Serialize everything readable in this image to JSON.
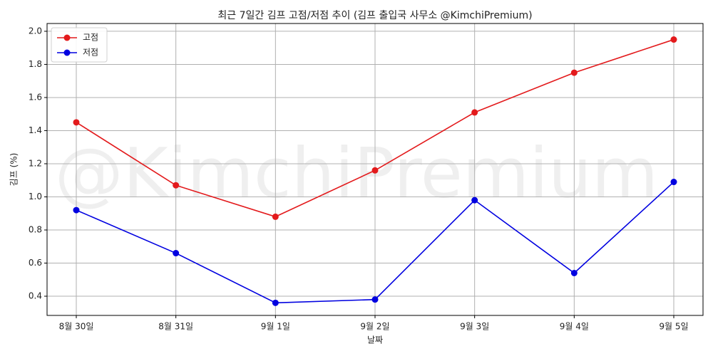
{
  "chart_data": {
    "type": "line",
    "title": "최근 7일간 김프 고점/저점 추이 (김프 출입국 사무소 @KimchiPremium)",
    "watermark": "@KimchiPremium",
    "x_label": "날짜",
    "y_label": "김프 (%)",
    "categories": [
      "8월 30일",
      "8월 31일",
      "9월 1일",
      "9월 2일",
      "9월 3일",
      "9월 4일",
      "9월 5일"
    ],
    "series": [
      {
        "name": "고점",
        "color": "#e31a1c",
        "values": [
          1.45,
          1.07,
          0.88,
          1.16,
          1.51,
          1.75,
          1.95
        ]
      },
      {
        "name": "저점",
        "color": "#0000e0",
        "values": [
          0.92,
          0.66,
          0.36,
          0.38,
          0.98,
          0.54,
          1.09
        ]
      }
    ],
    "ylim": [
      0.284,
      2.047
    ],
    "yticks": [
      0.4,
      0.6,
      0.8,
      {
        "value": 1,
        "label": "1.0"
      },
      1.2,
      1.4,
      1.6,
      1.8,
      {
        "value": 2,
        "label": "2.0"
      }
    ],
    "grid": true,
    "legend": "upper left"
  }
}
